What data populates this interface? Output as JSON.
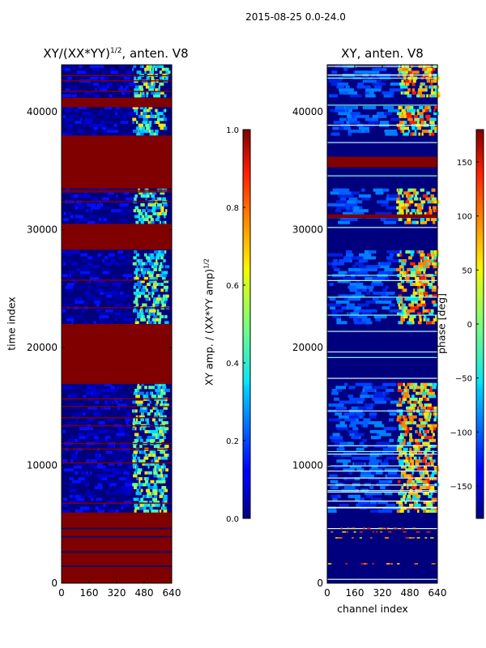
{
  "figure_title": "2015-08-25 0.0-24.0",
  "colors": {
    "jet_dark_red": "#800000",
    "jet_dark_blue": "#00007f",
    "jet_blue": "#0020ff",
    "jet_cyan": "#00e0ff",
    "jet_yellow": "#ffe600",
    "jet_red": "#ff1e00"
  },
  "chart_data": [
    {
      "type": "heatmap",
      "title_prefix": "XY/(XX*YY)",
      "title_exponent": "1/2",
      "title_suffix": ", anten. V8",
      "ylabel": "time index",
      "xlabel": "",
      "xlim": [
        0,
        640
      ],
      "ylim": [
        0,
        44000
      ],
      "xticks": [
        0,
        160,
        320,
        480,
        640
      ],
      "yticks": [
        0,
        10000,
        20000,
        30000,
        40000
      ],
      "colorbar": {
        "label_prefix": "XY amp. / (XX*YY amp)",
        "label_exponent": "1/2",
        "range": [
          0.0,
          1.0
        ],
        "ticks": [
          "0.0",
          "0.2",
          "0.4",
          "0.6",
          "0.8",
          "1.0"
        ]
      },
      "note": "Time ranges (in time-index units) where the normalized amplitude is ~1.0 (dark red, flagged/autocorrelation-like)",
      "high_value_bands": [
        [
          0,
          6000
        ],
        [
          17000,
          22000
        ],
        [
          28300,
          30500
        ],
        [
          33500,
          38000
        ],
        [
          40400,
          41200
        ]
      ],
      "active_channel_range": [
        410,
        620
      ]
    },
    {
      "type": "heatmap",
      "title": "XY, anten. V8",
      "ylabel": "",
      "xlabel": "channel index",
      "xlim": [
        0,
        640
      ],
      "ylim": [
        0,
        44000
      ],
      "xticks": [
        0,
        160,
        320,
        480,
        640
      ],
      "yticks": [
        0,
        10000,
        20000,
        30000,
        40000
      ],
      "colorbar": {
        "label": "phase [deg]",
        "range": [
          -180,
          180
        ],
        "ticks": [
          "150",
          "100",
          "50",
          "0",
          "−50",
          "−100",
          "−150"
        ]
      },
      "note": "Phase map; near −180 (dark blue) in flagged ranges, structured phase in channels ~400-640",
      "active_channel_range": [
        400,
        640
      ]
    }
  ]
}
